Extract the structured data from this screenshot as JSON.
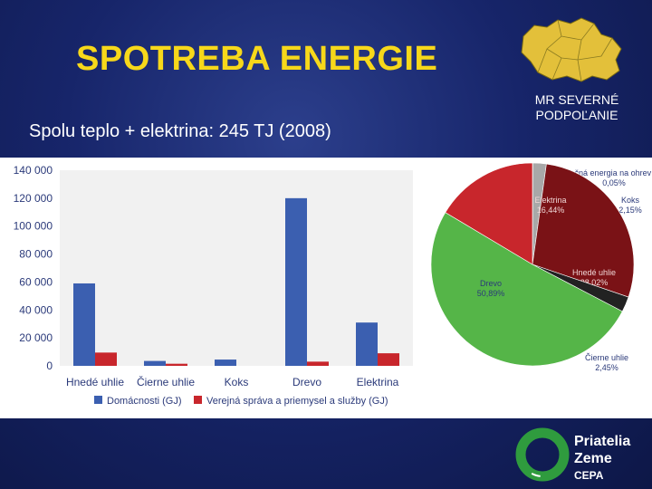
{
  "slide": {
    "title": "SPOTREBA ENERGIE",
    "subtitle": "Spolu teplo + elektrina: 245 TJ (2008)",
    "region_label_line1": "MR SEVERNÉ",
    "region_label_line2": "PODPOĽANIE"
  },
  "brand": {
    "line1": "Priatelia",
    "line2": "Zeme",
    "line3": "CEPA",
    "ring_color": "#2f9b3e"
  },
  "colors": {
    "title": "#f7d81a",
    "background": "#17256a",
    "series_households": "#3b5fb0",
    "series_public": "#c8262c",
    "plot_background": "#f1f1f1"
  },
  "chart_data": [
    {
      "type": "bar",
      "categories": [
        "Hnedé uhlie",
        "Čierne uhlie",
        "Koks",
        "Drevo",
        "Elektrina"
      ],
      "ylim": [
        0,
        140000
      ],
      "yticks": [
        0,
        20000,
        40000,
        60000,
        80000,
        100000,
        120000,
        140000
      ],
      "ytick_labels": [
        "0",
        "20 000",
        "40 000",
        "60 000",
        "80 000",
        "100 000",
        "120 000",
        "140 000"
      ],
      "series": [
        {
          "name": "Domácnosti (GJ)",
          "color": "#3b5fb0",
          "values": [
            59000,
            3500,
            4500,
            120000,
            31000
          ]
        },
        {
          "name": "Verejná správa a priemysel a služby (GJ)",
          "color": "#c8262c",
          "values": [
            9500,
            1500,
            0,
            3000,
            9000
          ]
        }
      ],
      "legend_position": "bottom",
      "grid": false
    },
    {
      "type": "pie",
      "slices": [
        {
          "label": "Slnečná energia na ohrev TÚV",
          "value": 0.05,
          "value_label": "0,05%",
          "color": "#e8c840"
        },
        {
          "label": "Koks",
          "value": 2.15,
          "value_label": "2,15%",
          "color": "#a8a8a8"
        },
        {
          "label": "Hnedé uhlie",
          "value": 28.02,
          "value_label": "28,02%",
          "color": "#7a1216"
        },
        {
          "label": "Čierne uhlie",
          "value": 2.45,
          "value_label": "2,45%",
          "color": "#222222"
        },
        {
          "label": "Drevo",
          "value": 50.89,
          "value_label": "50,89%",
          "color": "#55b548"
        },
        {
          "label": "Elektrina",
          "value": 16.44,
          "value_label": "16,44%",
          "color": "#c8262c"
        }
      ]
    }
  ]
}
